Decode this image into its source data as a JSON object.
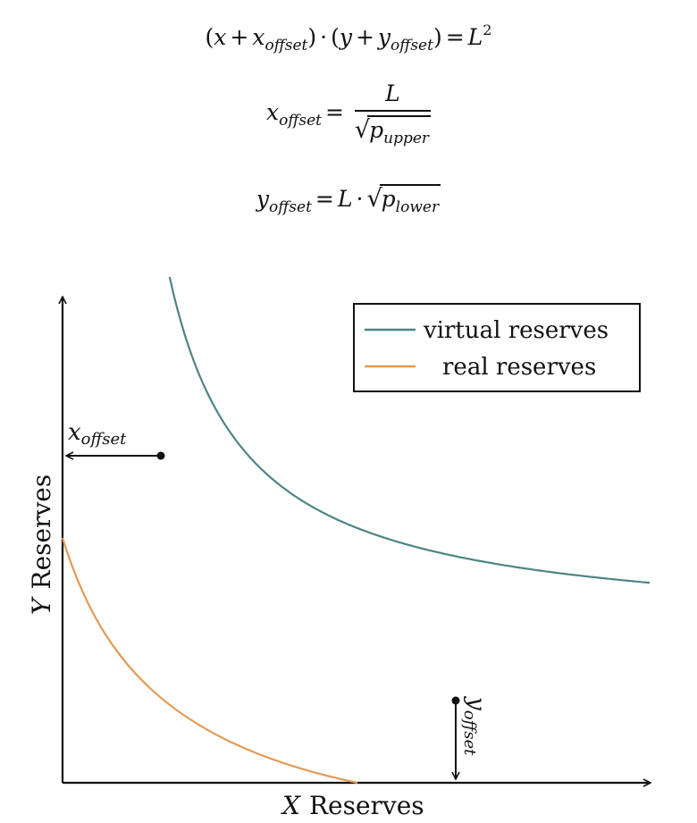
{
  "equations": {
    "eq1": {
      "open_paren": "(",
      "x": "x",
      "plus1": "+",
      "x_base": "x",
      "x_sub": "offset",
      "close_paren": ")",
      "dot": "·",
      "open_paren2": "(",
      "y": "y",
      "plus2": "+",
      "y_base": "y",
      "y_sub": "offset",
      "close_paren2": ")",
      "equals": "=",
      "L": "L",
      "power": "2"
    },
    "eq2": {
      "x_base": "x",
      "x_sub": "offset",
      "equals": "=",
      "numerator": "L",
      "sqrt_sign": "√",
      "p_base": "p",
      "p_sub": "upper"
    },
    "eq3": {
      "y_base": "y",
      "y_sub": "offset",
      "equals": "=",
      "L": "L",
      "dot": "·",
      "sqrt_sign": "√",
      "p_base": "p",
      "p_sub": "lower"
    }
  },
  "diagram": {
    "x_axis_label_var": "X",
    "x_axis_label_text": "Reserves",
    "y_axis_label_var": "Y",
    "y_axis_label_text": "Reserves",
    "legend": {
      "items": [
        {
          "label": "virtual reserves",
          "color": "#4e8585"
        },
        {
          "label": "real reserves",
          "color": "#e39a54"
        }
      ]
    },
    "annotations": {
      "x_offset_base": "x",
      "x_offset_sub": "offset",
      "y_offset_base": "y",
      "y_offset_sub": "offset"
    },
    "colors": {
      "virtual": "#4e8585",
      "real": "#e39a54",
      "axis": "#111111"
    }
  }
}
